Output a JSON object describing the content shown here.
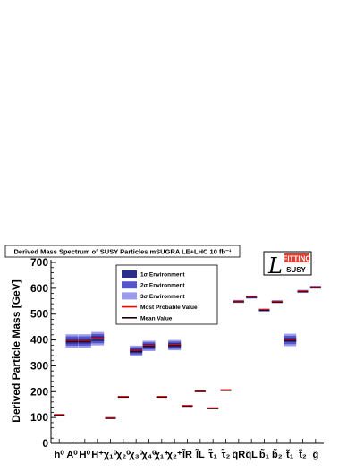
{
  "chart_data": {
    "type": "range",
    "title": "Derived Mass Spectrum of SUSY Particles mSUGRA LE+LHC 10 fb⁻¹",
    "ylabel": "Derived Particle Mass [GeV]",
    "xlabel": "",
    "ylim": [
      0,
      700
    ],
    "yticks": [
      0,
      100,
      200,
      300,
      400,
      500,
      600,
      700
    ],
    "grid": false,
    "legend_position": "top-center",
    "legend": [
      {
        "label": "1σ Environment",
        "color": "#2b2b8a"
      },
      {
        "label": "2σ Environment",
        "color": "#5555cc"
      },
      {
        "label": "3σ Environment",
        "color": "#9b9bee"
      },
      {
        "label": "Most Probable Value",
        "color": "#ff0000"
      },
      {
        "label": "Mean Value",
        "color": "#220000"
      }
    ],
    "categories": [
      {
        "label": "h⁰",
        "value": 110,
        "s1": 1,
        "s2": 2,
        "s3": 3
      },
      {
        "label": "A⁰",
        "value": 396,
        "s1": 10,
        "s2": 18,
        "s3": 26
      },
      {
        "label": "H⁰",
        "value": 396,
        "s1": 10,
        "s2": 18,
        "s3": 26
      },
      {
        "label": "H⁺",
        "value": 405,
        "s1": 10,
        "s2": 18,
        "s3": 26
      },
      {
        "label": "χ₁⁰",
        "value": 98,
        "s1": 1,
        "s2": 2,
        "s3": 3
      },
      {
        "label": "χ₂⁰",
        "value": 180,
        "s1": 1,
        "s2": 2,
        "s3": 3
      },
      {
        "label": "χ₃⁰",
        "value": 358,
        "s1": 8,
        "s2": 14,
        "s3": 20
      },
      {
        "label": "χ₄⁰",
        "value": 377,
        "s1": 8,
        "s2": 14,
        "s3": 20
      },
      {
        "label": "χ₁⁺",
        "value": 180,
        "s1": 1,
        "s2": 2,
        "s3": 3
      },
      {
        "label": "χ₂⁺",
        "value": 380,
        "s1": 8,
        "s2": 14,
        "s3": 20
      },
      {
        "label": "l̃R",
        "value": 145,
        "s1": 1,
        "s2": 2,
        "s3": 3
      },
      {
        "label": "l̃L",
        "value": 202,
        "s1": 1,
        "s2": 2,
        "s3": 3
      },
      {
        "label": "τ̃₁",
        "value": 136,
        "s1": 1,
        "s2": 2,
        "s3": 3
      },
      {
        "label": "τ̃₂",
        "value": 206,
        "s1": 1,
        "s2": 2,
        "s3": 3
      },
      {
        "label": "q̃R",
        "value": 549,
        "s1": 2,
        "s2": 4,
        "s3": 6
      },
      {
        "label": "q̃L",
        "value": 566,
        "s1": 2,
        "s2": 4,
        "s3": 6
      },
      {
        "label": "b̃₁",
        "value": 516,
        "s1": 2,
        "s2": 4,
        "s3": 6
      },
      {
        "label": "b̃₂",
        "value": 548,
        "s1": 2,
        "s2": 4,
        "s3": 6
      },
      {
        "label": "t̃₁",
        "value": 400,
        "s1": 8,
        "s2": 16,
        "s3": 24
      },
      {
        "label": "t̃₂",
        "value": 588,
        "s1": 2,
        "s2": 4,
        "s3": 6
      },
      {
        "label": "g̃",
        "value": 604,
        "s1": 2,
        "s2": 4,
        "s3": 6
      }
    ]
  },
  "logo": {
    "top": "FITTINO",
    "bottom": "SUSY",
    "mark": "L"
  }
}
